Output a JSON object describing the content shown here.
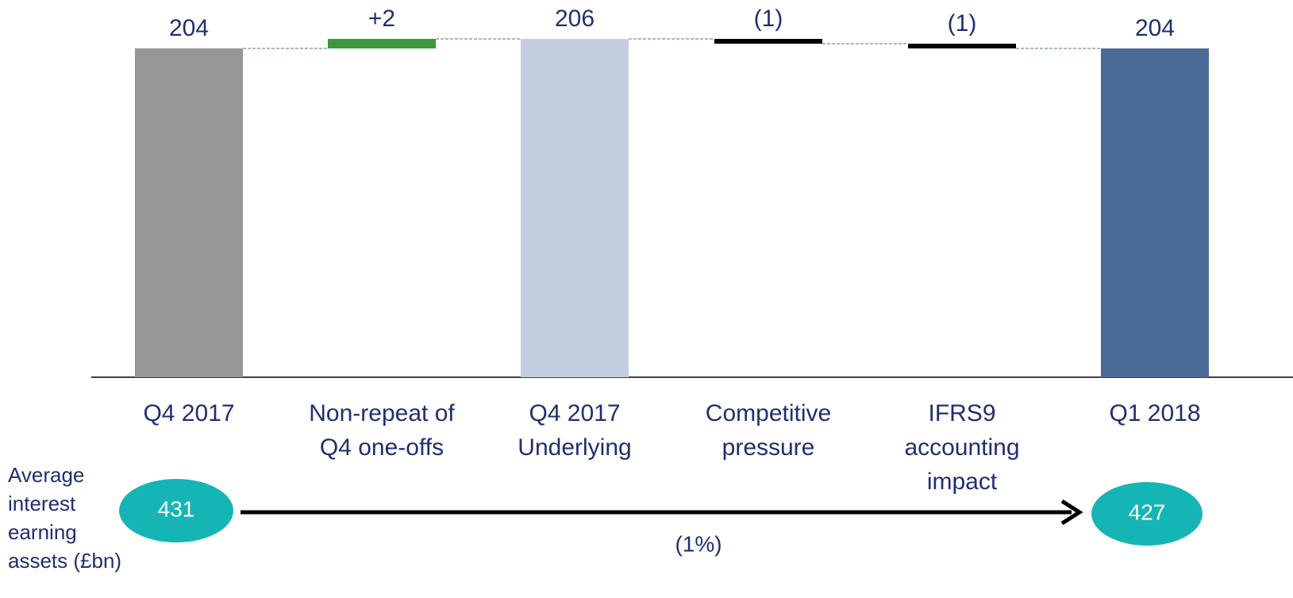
{
  "chart_data": {
    "type": "waterfall",
    "categories": [
      [
        "Q4 2017"
      ],
      [
        "Non-repeat of",
        "Q4 one-offs"
      ],
      [
        "Q4 2017",
        "Underlying"
      ],
      [
        "Competitive",
        "pressure"
      ],
      [
        "IFRS9",
        "accounting",
        "impact"
      ],
      [
        "Q1 2018"
      ]
    ],
    "values": [
      204,
      2,
      206,
      -1,
      -1,
      204
    ],
    "value_labels": [
      "204",
      "+2",
      "206",
      "(1)",
      "(1)",
      "204"
    ],
    "measures": [
      "total",
      "delta",
      "total",
      "delta",
      "delta",
      "total"
    ],
    "colors": [
      "#969696",
      "#3a9a3a",
      "#c3cfe0",
      "#000000",
      "#000000",
      "#4a6a96"
    ],
    "ylim": [
      135,
      208
    ],
    "assets": {
      "label": [
        "Average",
        "interest",
        "earning",
        "assets (£bn)"
      ],
      "start": "431",
      "end": "427",
      "change": "(1%)"
    }
  }
}
